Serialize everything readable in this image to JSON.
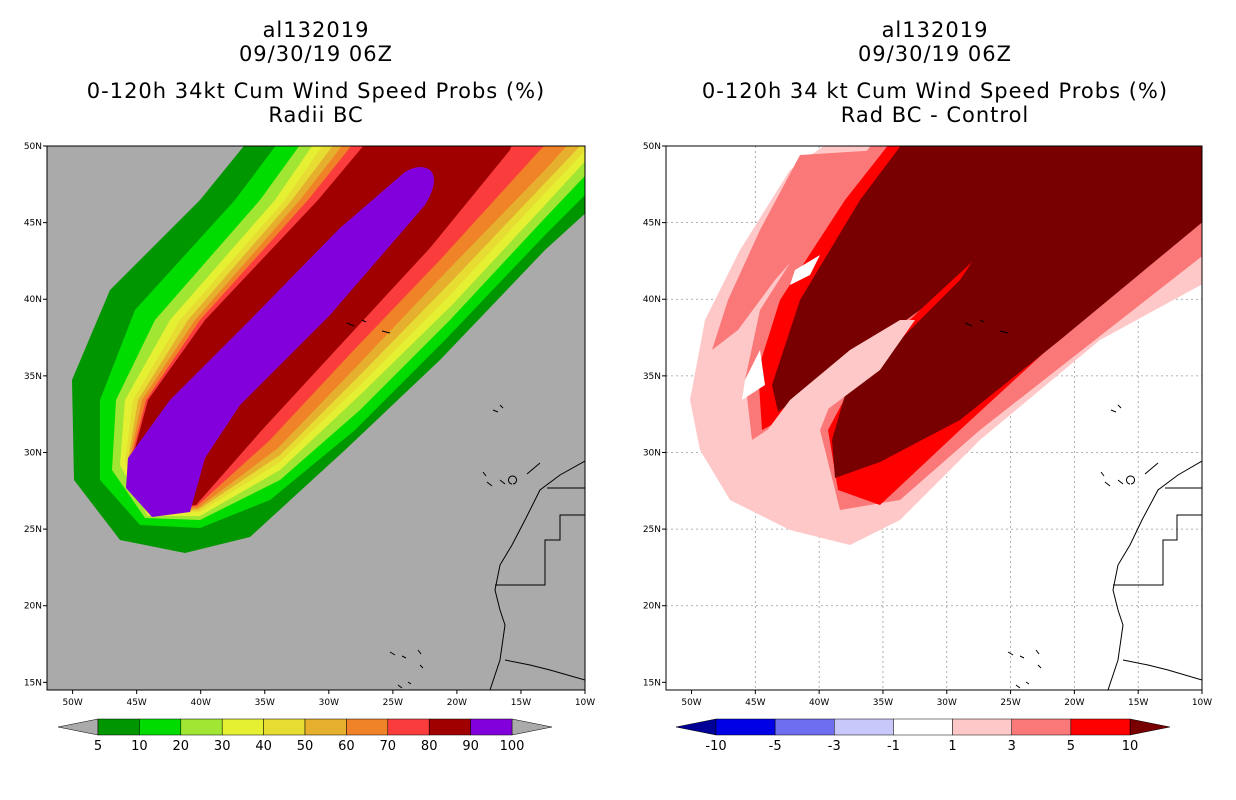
{
  "chart_data": [
    {
      "type": "heatmap",
      "panel": "left",
      "title_lines": [
        "al132019",
        "09/30/19 06Z",
        "0-120h 34kt Cum Wind Speed Probs (%)",
        "Radii BC"
      ],
      "x_ticks": [
        "50W",
        "45W",
        "40W",
        "35W",
        "30W",
        "25W",
        "20W",
        "15W",
        "10W"
      ],
      "y_ticks": [
        "50N",
        "45N",
        "40N",
        "35N",
        "30N",
        "25N",
        "20N",
        "15N"
      ],
      "x_range_deg": [
        -52,
        -10
      ],
      "y_range_deg": [
        14.5,
        50
      ],
      "colorbar": {
        "labels": [
          "5",
          "10",
          "20",
          "30",
          "40",
          "50",
          "60",
          "70",
          "80",
          "90",
          "100"
        ],
        "colors": [
          "#009600",
          "#00dc00",
          "#a0e632",
          "#e6f032",
          "#e6dc32",
          "#e6af2d",
          "#f08228",
          "#fa3c3c",
          "#a00000",
          "#8200dc"
        ],
        "under_color": "#aaaaaa",
        "over_color": "#aaaaaa"
      },
      "background": "#aaaaaa"
    },
    {
      "type": "heatmap",
      "panel": "right",
      "title_lines": [
        "al132019",
        "09/30/19 06Z",
        "0-120h 34 kt Cum Wind Speed Probs (%)",
        "Rad BC - Control"
      ],
      "x_ticks": [
        "50W",
        "45W",
        "40W",
        "35W",
        "30W",
        "25W",
        "20W",
        "15W",
        "10W"
      ],
      "y_ticks": [
        "50N",
        "45N",
        "40N",
        "35N",
        "30N",
        "25N",
        "20N",
        "15N"
      ],
      "x_range_deg": [
        -52,
        -10
      ],
      "y_range_deg": [
        14.5,
        50
      ],
      "colorbar": {
        "labels": [
          "-10",
          "-5",
          "-3",
          "-1",
          "1",
          "3",
          "5",
          "10"
        ],
        "colors": [
          "#0000e6",
          "#6e6ef0",
          "#c8c8fa",
          "#ffffff",
          "#ffc8c8",
          "#fa7878",
          "#ff0000"
        ],
        "under_color": "#000096",
        "over_color": "#780000"
      },
      "background": "#ffffff"
    }
  ]
}
